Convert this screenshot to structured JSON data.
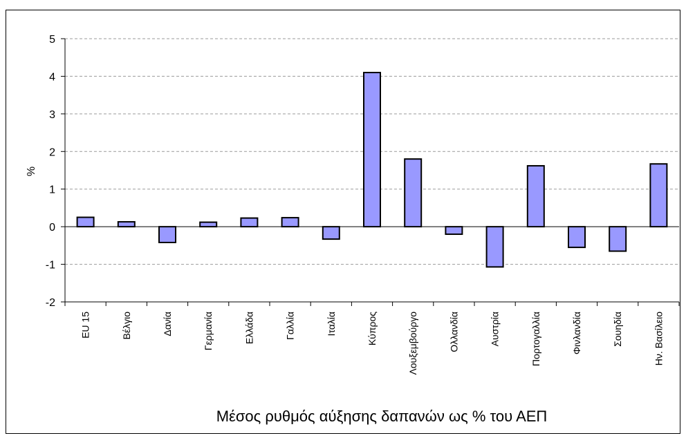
{
  "chart_data": {
    "type": "bar",
    "title": "",
    "xlabel": "Μέσος ρυθμός αύξησης δαπανών ως % του ΑΕΠ",
    "ylabel": "%",
    "ylim": [
      -2,
      5
    ],
    "yticks": [
      5,
      4,
      3,
      2,
      1,
      0,
      -1,
      -2
    ],
    "ytick_labels": [
      "5",
      "4",
      "3",
      "2",
      "1",
      "0",
      "-1",
      "-2"
    ],
    "grid": "horizontal dashed",
    "legend": "none",
    "bar_color": "#9999ff",
    "categories": [
      "EU 15",
      "Βέλγιο",
      "Δανία",
      "Γερμανία",
      "Ελλάδα",
      "Γαλλία",
      "Ιταλία",
      "Κύπρος",
      "Λουξεμβούργο",
      "Ολλανδία",
      "Αυστρία",
      "Πορτογαλλία",
      "Φινλανδία",
      "Σουηδία",
      "Ην. Βασίλειο"
    ],
    "values": [
      0.25,
      0.13,
      -0.42,
      0.12,
      0.23,
      0.24,
      -0.33,
      4.1,
      1.8,
      -0.2,
      -1.07,
      1.62,
      -0.55,
      -0.65,
      1.67
    ]
  }
}
